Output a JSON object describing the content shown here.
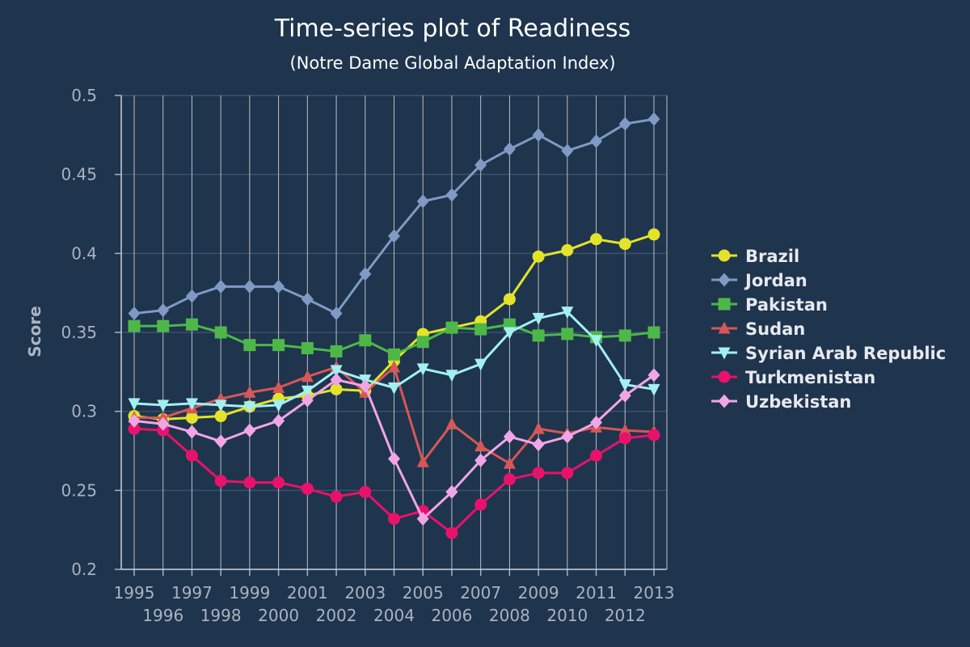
{
  "chart_data": {
    "type": "line",
    "title": "Time-series plot of Readiness",
    "subtitle": "(Notre Dame Global Adaptation Index)",
    "xlabel": "",
    "ylabel": "Score",
    "ylim": [
      0.2,
      0.5
    ],
    "yticks": [
      0.2,
      0.25,
      0.3,
      0.35,
      0.4,
      0.45,
      0.5
    ],
    "ytick_labels": [
      "0.2",
      "0.25",
      "0.3",
      "0.35",
      "0.4",
      "0.45",
      "0.5"
    ],
    "x": [
      1995,
      1996,
      1997,
      1998,
      1999,
      2000,
      2001,
      2002,
      2003,
      2004,
      2005,
      2006,
      2007,
      2008,
      2009,
      2010,
      2011,
      2012,
      2013
    ],
    "xtick_labels": [
      "1995",
      "1996",
      "1997",
      "1998",
      "1999",
      "2000",
      "2001",
      "2002",
      "2003",
      "2004",
      "2005",
      "2006",
      "2007",
      "2008",
      "2009",
      "2010",
      "2011",
      "2012",
      "2013"
    ],
    "grid": true,
    "legend_position": "right",
    "series": [
      {
        "name": "Brazil",
        "color": "#e3e32a",
        "marker": "circle",
        "values": [
          0.297,
          0.295,
          0.296,
          0.297,
          0.303,
          0.308,
          0.31,
          0.314,
          0.313,
          0.332,
          0.349,
          0.353,
          0.357,
          0.371,
          0.398,
          0.402,
          0.409,
          0.406,
          0.412
        ]
      },
      {
        "name": "Jordan",
        "color": "#7f9bc4",
        "marker": "diamond",
        "values": [
          0.362,
          0.364,
          0.373,
          0.379,
          0.379,
          0.379,
          0.371,
          0.362,
          0.387,
          0.411,
          0.433,
          0.437,
          0.456,
          0.466,
          0.475,
          0.465,
          0.471,
          0.482,
          0.485
        ]
      },
      {
        "name": "Pakistan",
        "color": "#4db848",
        "marker": "square",
        "values": [
          0.354,
          0.354,
          0.355,
          0.35,
          0.342,
          0.342,
          0.34,
          0.338,
          0.345,
          0.336,
          0.344,
          0.353,
          0.352,
          0.355,
          0.348,
          0.349,
          0.347,
          0.348,
          0.35
        ]
      },
      {
        "name": "Sudan",
        "color": "#d65757",
        "marker": "triangle-up",
        "values": [
          0.296,
          0.296,
          0.302,
          0.308,
          0.312,
          0.315,
          0.322,
          0.328,
          0.312,
          0.328,
          0.268,
          0.292,
          0.278,
          0.267,
          0.289,
          0.286,
          0.29,
          0.288,
          0.287
        ]
      },
      {
        "name": "Syrian Arab Republic",
        "color": "#a3f0f2",
        "marker": "triangle-down",
        "values": [
          0.305,
          0.304,
          0.305,
          0.304,
          0.303,
          0.304,
          0.313,
          0.326,
          0.32,
          0.315,
          0.327,
          0.323,
          0.33,
          0.35,
          0.359,
          0.363,
          0.345,
          0.317,
          0.314
        ]
      },
      {
        "name": "Turkmenistan",
        "color": "#e8126a",
        "marker": "circle",
        "values": [
          0.289,
          0.288,
          0.272,
          0.256,
          0.255,
          0.255,
          0.251,
          0.246,
          0.249,
          0.232,
          0.237,
          0.223,
          0.241,
          0.257,
          0.261,
          0.261,
          0.272,
          0.283,
          0.285
        ]
      },
      {
        "name": "Uzbekistan",
        "color": "#f0a6e6",
        "marker": "diamond",
        "values": [
          0.294,
          0.292,
          0.287,
          0.281,
          0.288,
          0.294,
          0.307,
          0.32,
          0.316,
          0.27,
          0.232,
          0.249,
          0.269,
          0.284,
          0.279,
          0.284,
          0.293,
          0.31,
          0.323
        ]
      }
    ]
  }
}
